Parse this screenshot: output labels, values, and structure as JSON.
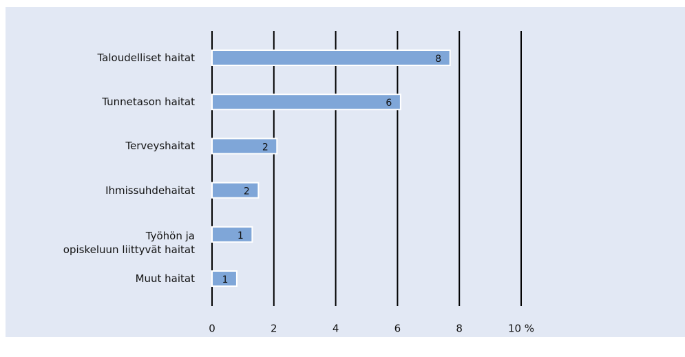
{
  "chart_data": {
    "type": "bar",
    "orientation": "horizontal",
    "categories": [
      "Taloudelliset haitat",
      "Tunnetason haitat",
      "Terveyshaitat",
      "Ihmissuhdehaitat",
      "Työhön ja\nopiskeluun liittyvät haitat",
      "Muut haitat"
    ],
    "values": [
      7.7,
      6.1,
      2.1,
      1.5,
      1.3,
      0.8
    ],
    "value_labels": [
      "8",
      "6",
      "2",
      "2",
      "1",
      "1"
    ],
    "color": "#7fa6d8",
    "xlim": [
      0,
      10
    ],
    "xticks": [
      0,
      2,
      4,
      6,
      8,
      {
        "value": 10,
        "label": "10 %"
      }
    ],
    "grid": true
  }
}
